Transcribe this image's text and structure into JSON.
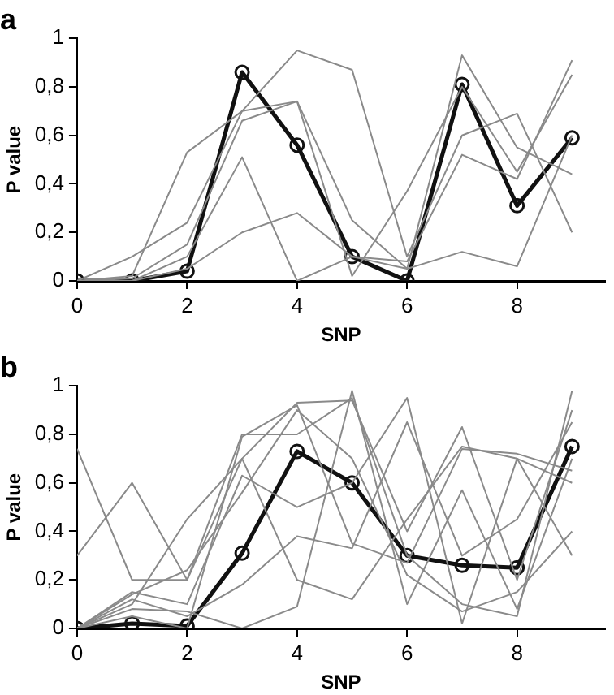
{
  "chart_data": [
    {
      "type": "line",
      "title": "a",
      "xlabel": "SNP",
      "ylabel": "P value",
      "xlim": [
        0,
        9.6
      ],
      "xticks": [
        0,
        2,
        4,
        6,
        8
      ],
      "ylim": [
        0,
        1
      ],
      "yticks": [
        {
          "value": 0,
          "label": "0"
        },
        {
          "value": 0.2,
          "label": "0,2"
        },
        {
          "value": 0.4,
          "label": "0,4"
        },
        {
          "value": 0.6,
          "label": "0,6"
        },
        {
          "value": 0.8,
          "label": "0,8"
        },
        {
          "value": 1,
          "label": "1"
        }
      ],
      "grid": false,
      "legend": false,
      "x": [
        0,
        1,
        2,
        3,
        4,
        5,
        6,
        7,
        8,
        9
      ],
      "series": [
        {
          "color": "#8a8a8a",
          "marker": "none",
          "values": [
            0,
            0.1,
            0.24,
            0.7,
            0.95,
            0.87,
            0.1,
            0.6,
            0.69,
            0.2
          ]
        },
        {
          "color": "#8a8a8a",
          "marker": "none",
          "values": [
            0,
            0.02,
            0.53,
            0.7,
            0.74,
            0.25,
            0.05,
            0.93,
            0.55,
            0.44
          ]
        },
        {
          "color": "#8a8a8a",
          "marker": "none",
          "values": [
            0,
            0,
            0.05,
            0.2,
            0.28,
            0.1,
            0.05,
            0.12,
            0.06,
            0.6
          ]
        },
        {
          "color": "#8a8a8a",
          "marker": "none",
          "values": [
            0,
            0,
            0.1,
            0.51,
            0,
            0.1,
            0.08,
            0.52,
            0.42,
            0.91
          ]
        },
        {
          "color": "#8a8a8a",
          "marker": "none",
          "values": [
            0,
            0.01,
            0.15,
            0.66,
            0.74,
            0.02,
            0.37,
            0.8,
            0.45,
            0.85
          ]
        },
        {
          "color": "#111111",
          "marker": "circle",
          "values": [
            0,
            0,
            0.04,
            0.86,
            0.56,
            0.1,
            0,
            0.81,
            0.31,
            0.59
          ]
        }
      ]
    },
    {
      "type": "line",
      "title": "b",
      "xlabel": "SNP",
      "ylabel": "P value",
      "xlim": [
        0,
        9.6
      ],
      "xticks": [
        0,
        2,
        4,
        6,
        8
      ],
      "ylim": [
        0,
        1
      ],
      "yticks": [
        {
          "value": 0,
          "label": "0"
        },
        {
          "value": 0.2,
          "label": "0,2"
        },
        {
          "value": 0.4,
          "label": "0,4"
        },
        {
          "value": 0.6,
          "label": "0,6"
        },
        {
          "value": 0.8,
          "label": "0,8"
        },
        {
          "value": 1,
          "label": "1"
        }
      ],
      "grid": false,
      "legend": false,
      "x": [
        0,
        1,
        2,
        3,
        4,
        5,
        6,
        7,
        8,
        9
      ],
      "series": [
        {
          "color": "#8a8a8a",
          "marker": "none",
          "values": [
            0.74,
            0.2,
            0.2,
            0.8,
            0.8,
            0.95,
            0.3,
            0.1,
            0.05,
            0.98
          ]
        },
        {
          "color": "#8a8a8a",
          "marker": "none",
          "values": [
            0.3,
            0.6,
            0.2,
            0.7,
            0.93,
            0.94,
            0.4,
            0.83,
            0.2,
            0.9
          ]
        },
        {
          "color": "#8a8a8a",
          "marker": "none",
          "values": [
            0,
            0.15,
            0.1,
            0.63,
            0.5,
            0.6,
            0.95,
            0.02,
            0.7,
            0.6
          ]
        },
        {
          "color": "#8a8a8a",
          "marker": "none",
          "values": [
            0,
            0.12,
            0.05,
            0.18,
            0.38,
            0.33,
            0.85,
            0.3,
            0.45,
            0.85
          ]
        },
        {
          "color": "#8a8a8a",
          "marker": "none",
          "values": [
            0,
            0.1,
            0.45,
            0.7,
            0.2,
            0.12,
            0.45,
            0.75,
            0.7,
            0.3
          ]
        },
        {
          "color": "#8a8a8a",
          "marker": "none",
          "values": [
            0,
            0.08,
            0.07,
            0,
            0.09,
            0.98,
            0.1,
            0.57,
            0.08,
            0.7
          ]
        },
        {
          "color": "#8a8a8a",
          "marker": "none",
          "values": [
            0,
            0.14,
            0.24,
            0.56,
            0.9,
            0.7,
            0.22,
            0.07,
            0.15,
            0.4
          ]
        },
        {
          "color": "#8a8a8a",
          "marker": "none",
          "values": [
            0,
            0.05,
            0,
            0.79,
            0.92,
            0.35,
            0.27,
            0.74,
            0.72,
            0.65
          ]
        },
        {
          "color": "#111111",
          "marker": "circle",
          "values": [
            0,
            0.02,
            0.01,
            0.31,
            0.73,
            0.6,
            0.3,
            0.26,
            0.25,
            0.75
          ]
        }
      ]
    }
  ]
}
